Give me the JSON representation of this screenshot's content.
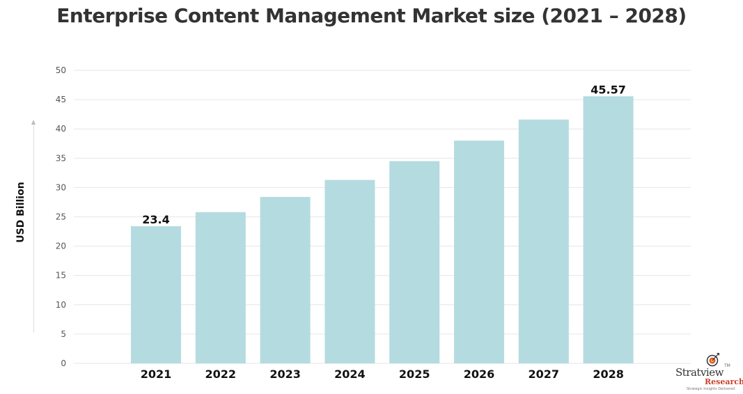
{
  "chart_data": {
    "type": "bar",
    "title": "Enterprise Content Management Market size (2021 – 2028)",
    "xlabel": "",
    "ylabel": "USD Billion",
    "categories": [
      "2021",
      "2022",
      "2023",
      "2024",
      "2025",
      "2026",
      "2027",
      "2028"
    ],
    "values": [
      23.4,
      25.8,
      28.4,
      31.3,
      34.5,
      38.0,
      41.6,
      45.57
    ],
    "data_labels": [
      {
        "category": "2021",
        "text": "23.4"
      },
      {
        "category": "2028",
        "text": "45.57"
      }
    ],
    "ylim": [
      0,
      50
    ],
    "yticks": [
      0,
      5,
      10,
      15,
      20,
      25,
      30,
      35,
      40,
      45,
      50
    ],
    "grid": true,
    "legend": "none",
    "bar_color": "#b4dbe0",
    "grid_color": "#e6e6e6"
  },
  "branding": {
    "logo_name": "Stratview",
    "logo_tm": "TM",
    "logo_sub": "Research",
    "logo_tagline": "Strategic Insights Delivered",
    "icon": "target-arrow-icon"
  }
}
